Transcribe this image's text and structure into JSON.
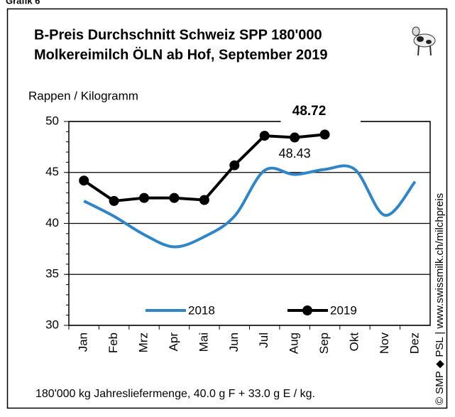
{
  "chart_data": {
    "type": "line",
    "header": "Grafik 6",
    "title": [
      "B-Preis Durchschnitt Schweiz SPP 180'000",
      "Molkereimilch ÖLN ab Hof, September 2019"
    ],
    "y_label": "Rappen / Kilogramm",
    "footnote": "180'000 kg Jahresliefermenge, 40.0 g F + 33.0 g E / kg.",
    "source": "© SMP ◆ PSL | www.swissmilk.ch/milchpreis",
    "categories": [
      "Jan",
      "Feb",
      "Mrz",
      "Apr",
      "Mai",
      "Jun",
      "Jul",
      "Aug",
      "Sep",
      "Okt",
      "Nov",
      "Dez"
    ],
    "series": [
      {
        "name": "2018",
        "color": "#2e86c8",
        "smooth": true,
        "markers": false,
        "values": [
          42.2,
          40.7,
          38.9,
          37.7,
          38.7,
          40.7,
          45.2,
          44.8,
          45.3,
          45.3,
          40.8,
          44.1
        ]
      },
      {
        "name": "2019",
        "color": "#000000",
        "smooth": false,
        "markers": true,
        "values": [
          44.2,
          42.2,
          42.5,
          42.5,
          42.3,
          45.7,
          48.6,
          48.43,
          48.72,
          null,
          null,
          null
        ]
      }
    ],
    "ylim": [
      30,
      50
    ],
    "yticks": [
      30,
      35,
      40,
      45,
      50
    ],
    "grid": true
  }
}
